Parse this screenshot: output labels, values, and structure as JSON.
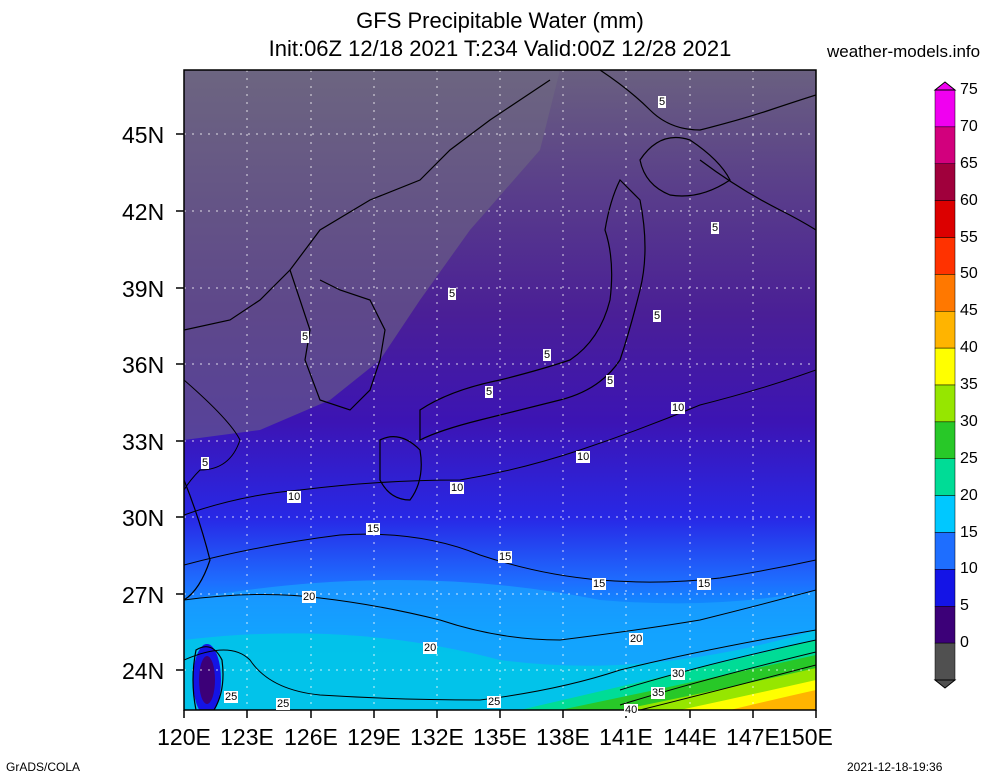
{
  "title_line1": "GFS Precipitable Water (mm)",
  "title_line2": "Init:06Z 12/18 2021 T:234 Valid:00Z 12/28 2021",
  "site": "weather-models.info",
  "footer_left": "GrADS/COLA",
  "footer_right": "2021-12-18-19:36",
  "lat_labels": [
    "45N",
    "42N",
    "39N",
    "36N",
    "33N",
    "30N",
    "27N",
    "24N"
  ],
  "lon_labels": [
    "120E",
    "123E",
    "126E",
    "129E",
    "132E",
    "135E",
    "138E",
    "141E",
    "144E",
    "147E",
    "150E"
  ],
  "colorbar": {
    "labels": [
      "75",
      "70",
      "65",
      "60",
      "55",
      "50",
      "45",
      "40",
      "35",
      "30",
      "25",
      "20",
      "15",
      "10",
      "5",
      "0"
    ],
    "colors": [
      "#f000f0",
      "#d2007d",
      "#a0003c",
      "#dc0000",
      "#ff3200",
      "#ff7800",
      "#ffb400",
      "#ffff00",
      "#96e600",
      "#28c828",
      "#00dc96",
      "#00c8ff",
      "#1e6eff",
      "#1414e6",
      "#3c0078",
      "#505050"
    ]
  },
  "contour_labels": [
    {
      "text": "5"
    },
    {
      "text": "5"
    },
    {
      "text": "5"
    },
    {
      "text": "5"
    },
    {
      "text": "5"
    },
    {
      "text": "5"
    },
    {
      "text": "5"
    },
    {
      "text": "5"
    },
    {
      "text": "10"
    },
    {
      "text": "10"
    },
    {
      "text": "10"
    },
    {
      "text": "10"
    },
    {
      "text": "15"
    },
    {
      "text": "15"
    },
    {
      "text": "15"
    },
    {
      "text": "15"
    },
    {
      "text": "20"
    },
    {
      "text": "20"
    },
    {
      "text": "20"
    },
    {
      "text": "25"
    },
    {
      "text": "25"
    },
    {
      "text": "25"
    },
    {
      "text": "30"
    },
    {
      "text": "35"
    },
    {
      "text": "40"
    }
  ]
}
